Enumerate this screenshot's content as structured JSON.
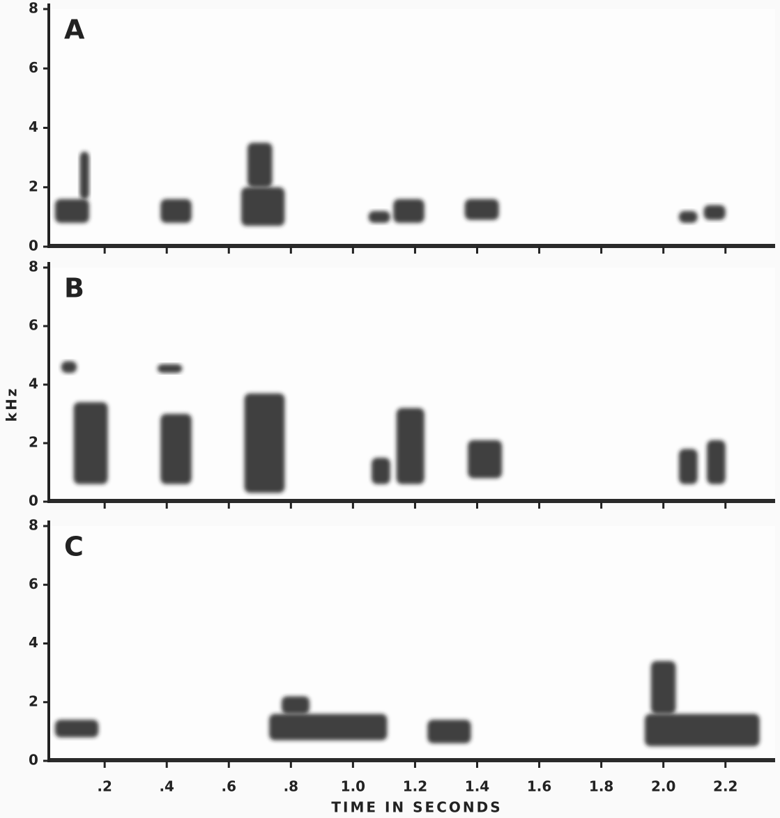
{
  "chart_data": [
    {
      "type": "spectrogram",
      "panel": "A",
      "xlim": [
        0.02,
        2.36
      ],
      "ylim": [
        0,
        8
      ],
      "yticks": [
        0,
        2,
        4,
        6,
        8
      ],
      "segments": [
        {
          "x": [
            0.04,
            0.15
          ],
          "y": [
            0.8,
            1.6
          ]
        },
        {
          "x": [
            0.12,
            0.15
          ],
          "y": [
            1.6,
            3.2
          ]
        },
        {
          "x": [
            0.38,
            0.48
          ],
          "y": [
            0.8,
            1.6
          ]
        },
        {
          "x": [
            0.64,
            0.78
          ],
          "y": [
            0.7,
            2.0
          ]
        },
        {
          "x": [
            0.66,
            0.74
          ],
          "y": [
            2.0,
            3.5
          ]
        },
        {
          "x": [
            1.05,
            1.12
          ],
          "y": [
            0.8,
            1.2
          ]
        },
        {
          "x": [
            1.13,
            1.23
          ],
          "y": [
            0.8,
            1.6
          ]
        },
        {
          "x": [
            1.36,
            1.47
          ],
          "y": [
            0.9,
            1.6
          ]
        },
        {
          "x": [
            2.05,
            2.11
          ],
          "y": [
            0.8,
            1.2
          ]
        },
        {
          "x": [
            2.13,
            2.2
          ],
          "y": [
            0.9,
            1.4
          ]
        }
      ]
    },
    {
      "type": "spectrogram",
      "panel": "B",
      "ylabel": "kHz",
      "xlim": [
        0.02,
        2.36
      ],
      "ylim": [
        0,
        8
      ],
      "yticks": [
        0,
        2,
        4,
        6,
        8
      ],
      "segments": [
        {
          "x": [
            0.1,
            0.21
          ],
          "y": [
            0.6,
            3.4
          ]
        },
        {
          "x": [
            0.06,
            0.11
          ],
          "y": [
            4.4,
            4.8
          ]
        },
        {
          "x": [
            0.38,
            0.48
          ],
          "y": [
            0.6,
            3.0
          ]
        },
        {
          "x": [
            0.37,
            0.45
          ],
          "y": [
            4.4,
            4.7
          ]
        },
        {
          "x": [
            0.65,
            0.78
          ],
          "y": [
            0.3,
            3.7
          ]
        },
        {
          "x": [
            1.06,
            1.12
          ],
          "y": [
            0.6,
            1.5
          ]
        },
        {
          "x": [
            1.14,
            1.23
          ],
          "y": [
            0.6,
            3.2
          ]
        },
        {
          "x": [
            1.37,
            1.48
          ],
          "y": [
            0.8,
            2.1
          ]
        },
        {
          "x": [
            2.05,
            2.11
          ],
          "y": [
            0.6,
            1.8
          ]
        },
        {
          "x": [
            2.14,
            2.2
          ],
          "y": [
            0.6,
            2.1
          ]
        }
      ]
    },
    {
      "type": "spectrogram",
      "panel": "C",
      "xlabel": "TIME IN SECONDS",
      "xlim": [
        0.02,
        2.36
      ],
      "ylim": [
        0,
        8
      ],
      "yticks": [
        0,
        2,
        4,
        6,
        8
      ],
      "xticks": [
        {
          "value": 0.2,
          "label": ".2"
        },
        {
          "value": 0.4,
          "label": ".4"
        },
        {
          "value": 0.6,
          "label": ".6"
        },
        {
          "value": 0.8,
          "label": ".8"
        },
        {
          "value": 1.0,
          "label": "1.0"
        },
        {
          "value": 1.2,
          "label": "1.2"
        },
        {
          "value": 1.4,
          "label": "1.4"
        },
        {
          "value": 1.6,
          "label": "1.6"
        },
        {
          "value": 1.8,
          "label": "1.8"
        },
        {
          "value": 2.0,
          "label": "2.0"
        },
        {
          "value": 2.2,
          "label": "2.2"
        }
      ],
      "segments": [
        {
          "x": [
            0.04,
            0.18
          ],
          "y": [
            0.8,
            1.4
          ]
        },
        {
          "x": [
            0.73,
            1.11
          ],
          "y": [
            0.7,
            1.6
          ]
        },
        {
          "x": [
            0.77,
            0.86
          ],
          "y": [
            1.6,
            2.2
          ]
        },
        {
          "x": [
            1.24,
            1.38
          ],
          "y": [
            0.6,
            1.4
          ]
        },
        {
          "x": [
            1.94,
            2.31
          ],
          "y": [
            0.5,
            1.6
          ]
        },
        {
          "x": [
            1.96,
            2.04
          ],
          "y": [
            1.6,
            3.4
          ]
        }
      ]
    }
  ]
}
